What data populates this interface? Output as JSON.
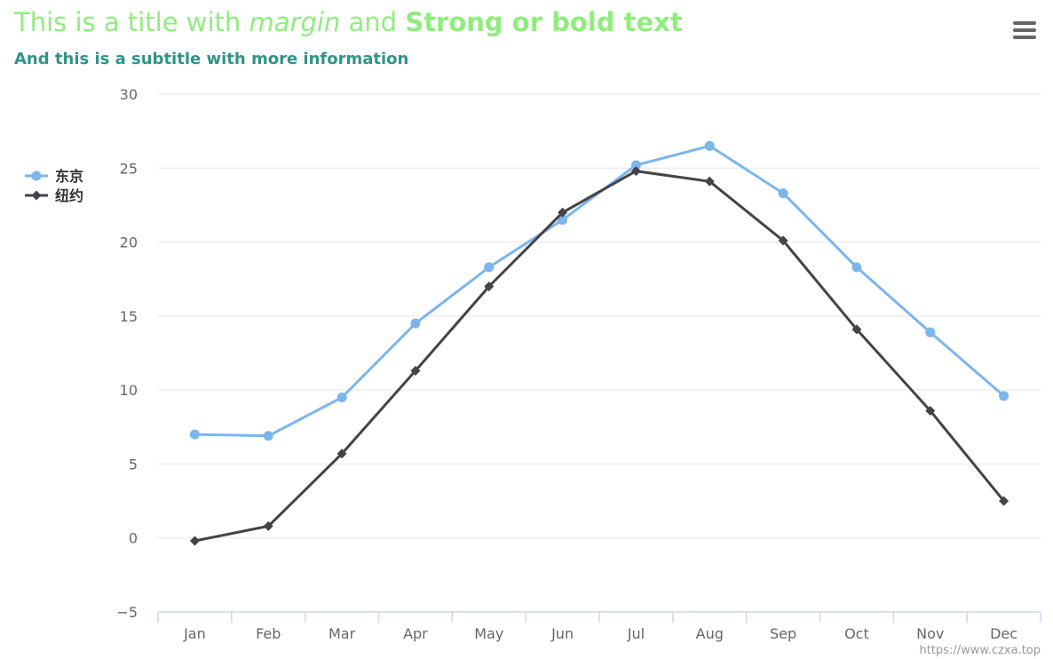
{
  "title": {
    "part1": "This is a title with ",
    "part2": "margin",
    "part3": " and ",
    "part4": "Strong or bold text",
    "color": "#90ed7d"
  },
  "subtitle": {
    "text": "And this is a subtitle with more information",
    "color": "#2f9488"
  },
  "menu": {
    "icon": "hamburger-menu-icon"
  },
  "credits": {
    "text": "https://www.czxa.top"
  },
  "chart_data": {
    "type": "line",
    "title": "This is a title with margin and Strong or bold text",
    "subtitle": "And this is a subtitle with more information",
    "categories": [
      "Jan",
      "Feb",
      "Mar",
      "Apr",
      "May",
      "Jun",
      "Jul",
      "Aug",
      "Sep",
      "Oct",
      "Nov",
      "Dec"
    ],
    "series": [
      {
        "name": "东京",
        "color": "#7cb5ec",
        "marker": "circle",
        "values": [
          7.0,
          6.9,
          9.5,
          14.5,
          18.3,
          21.5,
          25.2,
          26.5,
          23.3,
          18.3,
          13.9,
          9.6
        ]
      },
      {
        "name": "纽约",
        "color": "#434348",
        "marker": "diamond",
        "values": [
          -0.2,
          0.8,
          5.7,
          11.3,
          17.0,
          22.0,
          24.8,
          24.1,
          20.1,
          14.1,
          8.6,
          2.5
        ]
      }
    ],
    "yticks": [
      -5,
      0,
      5,
      10,
      15,
      20,
      25,
      30
    ],
    "ylim": [
      -5,
      30
    ],
    "xlabel": "",
    "ylabel": "",
    "grid": true,
    "legend_position": "left-middle",
    "colors": {
      "grid": "#e6e6e6",
      "axis_line": "#ccd6eb",
      "tick_label": "#666666"
    }
  }
}
